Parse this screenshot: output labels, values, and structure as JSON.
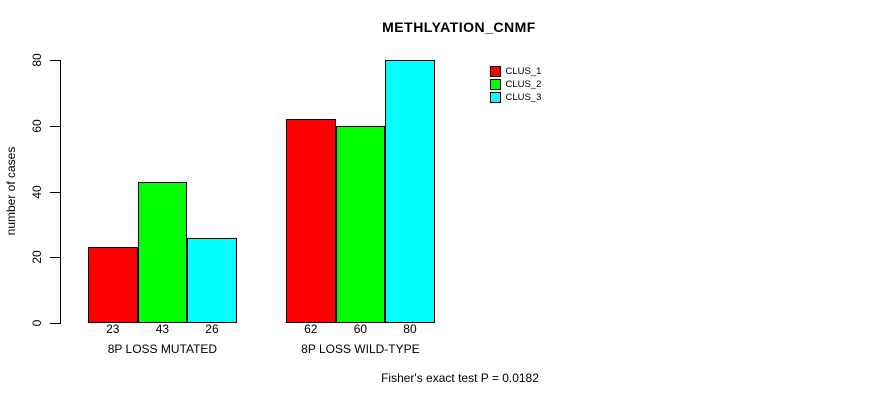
{
  "chart_data": {
    "type": "bar",
    "title": "METHLYATION_CNMF",
    "ylabel": "number of cases",
    "xlabel": "",
    "ylim": [
      0,
      80
    ],
    "yticks": [
      0,
      20,
      40,
      60,
      80
    ],
    "grid": false,
    "legend_position": "top-right",
    "categories": [
      "8P LOSS MUTATED",
      "8P LOSS WILD-TYPE"
    ],
    "series": [
      {
        "name": "CLUS_1",
        "color": "#ff0000",
        "values": [
          23,
          62
        ]
      },
      {
        "name": "CLUS_2",
        "color": "#00ff00",
        "values": [
          43,
          60
        ]
      },
      {
        "name": "CLUS_3",
        "color": "#00ffff",
        "values": [
          26,
          80
        ]
      }
    ],
    "footer": "Fisher's exact test P = 0.0182",
    "axis_color": "#000000",
    "text_color": "#000000",
    "background_color": "#ffffff"
  }
}
